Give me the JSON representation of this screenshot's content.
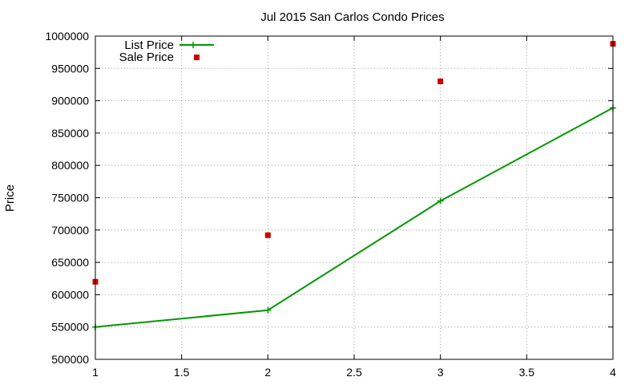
{
  "chart_data": {
    "type": "line",
    "title": "Jul 2015 San Carlos Condo Prices",
    "xlabel": "",
    "ylabel": "Price",
    "xlim": [
      1,
      4
    ],
    "ylim": [
      500000,
      1000000
    ],
    "xticks": [
      "1",
      "1.5",
      "2",
      "2.5",
      "3",
      "3.5",
      "4"
    ],
    "xtick_values": [
      1,
      1.5,
      2,
      2.5,
      3,
      3.5,
      4
    ],
    "yticks": [
      "500000",
      "550000",
      "600000",
      "650000",
      "700000",
      "750000",
      "800000",
      "850000",
      "900000",
      "950000",
      "1000000"
    ],
    "ytick_values": [
      500000,
      550000,
      600000,
      650000,
      700000,
      750000,
      800000,
      850000,
      900000,
      950000,
      1000000
    ],
    "grid": true,
    "legend_position": "top-left",
    "series": [
      {
        "name": "List Price",
        "style": "line-with-plus-markers",
        "color": "#009900",
        "x": [
          1,
          2,
          3,
          4
        ],
        "y": [
          550000,
          576000,
          745000,
          889000
        ]
      },
      {
        "name": "Sale Price",
        "style": "square-points",
        "color": "#cc0000",
        "x": [
          1,
          2,
          3,
          4
        ],
        "y": [
          620000,
          692000,
          930000,
          988000
        ]
      }
    ]
  }
}
